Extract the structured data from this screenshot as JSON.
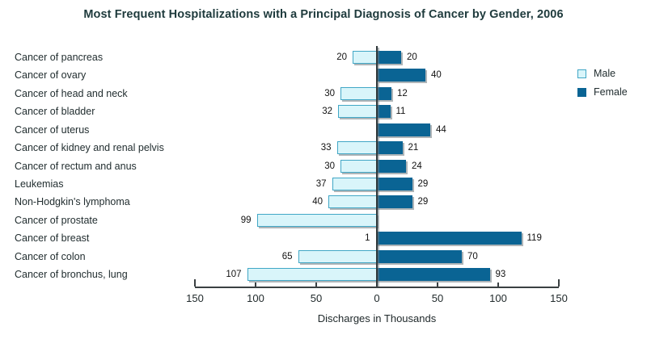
{
  "title": "Most Frequent Hospitalizations with a Principal Diagnosis of Cancer by Gender, 2006",
  "xlabel": "Discharges in Thousands",
  "legend": {
    "male": "Male",
    "female": "Female"
  },
  "colors": {
    "male_fill": "#d9f5fa",
    "male_border": "#41a7c6",
    "female_fill": "#0a6494",
    "title_text": "#1e3a3c",
    "axis": "#3a4042",
    "shadow_gray": "#6e787d"
  },
  "chart_data": {
    "type": "bar",
    "orientation": "diverging-horizontal",
    "title": "Most Frequent Hospitalizations with a Principal Diagnosis of Cancer by Gender, 2006",
    "xlabel": "Discharges in Thousands",
    "xlim": [
      -150,
      150
    ],
    "grid": false,
    "legend_position": "right",
    "categories": [
      "Cancer of pancreas",
      "Cancer of ovary",
      "Cancer of head and neck",
      "Cancer of bladder",
      "Cancer of uterus",
      "Cancer of kidney and renal pelvis",
      "Cancer of rectum and anus",
      "Leukemias",
      "Non-Hodgkin's lymphoma",
      "Cancer of prostate",
      "Cancer of breast",
      "Cancer of colon",
      "Cancer of bronchus, lung"
    ],
    "series": [
      {
        "name": "Male",
        "side": "left",
        "values": [
          20,
          null,
          30,
          32,
          null,
          33,
          30,
          37,
          40,
          99,
          1,
          65,
          107
        ]
      },
      {
        "name": "Female",
        "side": "right",
        "values": [
          20,
          40,
          12,
          11,
          44,
          21,
          24,
          29,
          29,
          null,
          119,
          70,
          93
        ]
      }
    ],
    "ticks": [
      {
        "label": "150",
        "value": -150
      },
      {
        "label": "100",
        "value": -100
      },
      {
        "label": "50",
        "value": -50
      },
      {
        "label": "0",
        "value": 0
      },
      {
        "label": "50",
        "value": 50
      },
      {
        "label": "100",
        "value": 100
      },
      {
        "label": "150",
        "value": 150
      }
    ]
  }
}
